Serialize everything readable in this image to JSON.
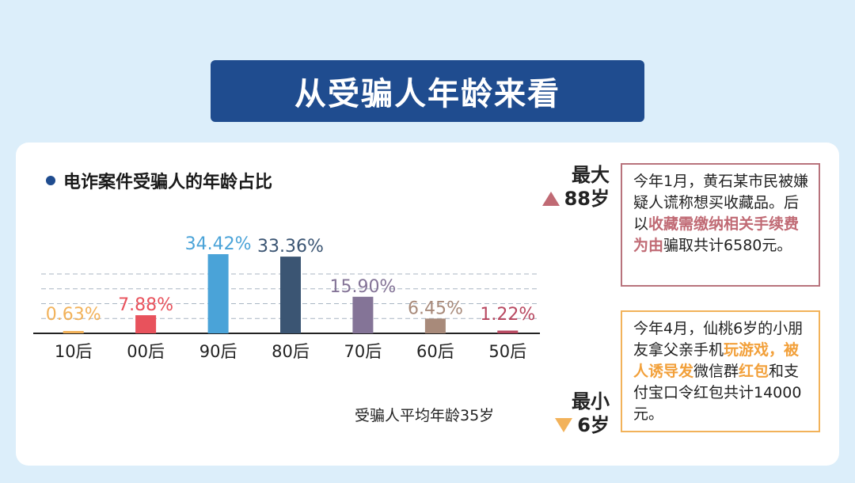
{
  "banner": {
    "title": "从受骗人年龄来看"
  },
  "chart_title": "电诈案件受骗人的年龄占比",
  "chart_data": {
    "type": "bar",
    "title": "电诈案件受骗人的年龄占比",
    "categories": [
      "10后",
      "00后",
      "90后",
      "80后",
      "70后",
      "60后",
      "50后"
    ],
    "values": [
      0.63,
      7.88,
      34.42,
      33.36,
      15.9,
      6.45,
      1.22
    ],
    "data_labels": [
      "0.63%",
      "7.88%",
      "34.42%",
      "33.36%",
      "15.90%",
      "6.45%",
      "1.22%"
    ],
    "colors": [
      "#f2b25a",
      "#e8525c",
      "#4aa3d8",
      "#3b5573",
      "#847497",
      "#a88a7a",
      "#b84860"
    ],
    "ylim": [
      0,
      40
    ],
    "grid": true,
    "legend": "none"
  },
  "average": "受骗人平均年龄35岁",
  "max_age": {
    "label": "最大",
    "value": "88岁"
  },
  "min_age": {
    "label": "最小",
    "value": "6岁"
  },
  "story_max": {
    "p1": "今年1月，黄石某市民被嫌疑人谎称想买收藏品。后以",
    "hl": "收藏需缴纳相关手续费为由",
    "p2": "骗取共计6580元。"
  },
  "story_min": {
    "p1": "今年4月，仙桃6岁的小朋友拿父亲手机",
    "hl1": "玩游戏，被人诱导发",
    "p2": "微信群",
    "hl2": "红包",
    "p3": "和支付宝口令红包共计14000元。"
  }
}
